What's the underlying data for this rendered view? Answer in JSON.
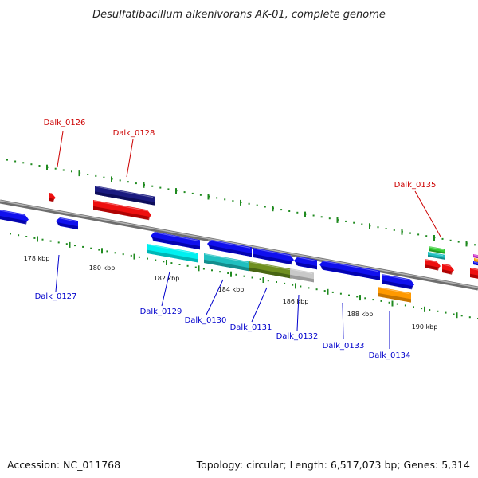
{
  "title": "Desulfatibacillum alkenivorans AK-01, complete genome",
  "footer": {
    "accession": "Accession: NC_011768",
    "topology": "Topology: circular; Length: 6,517,073 bp; Genes: 5,314"
  },
  "colors": {
    "backbone": "#7f7f7f",
    "tick": "#1f8a1f",
    "label_top": "#cc0000",
    "label_bottom": "#0000cc"
  },
  "ticks": [
    "178 kbp",
    "180 kbp",
    "182 kbp",
    "184 kbp",
    "186 kbp",
    "188 kbp",
    "190 kbp"
  ],
  "top_labels": [
    "Dalk_0126",
    "Dalk_0128",
    "Dalk_0135"
  ],
  "bottom_labels": [
    "Dalk_0127",
    "Dalk_0129",
    "Dalk_0130",
    "Dalk_0131",
    "Dalk_0132",
    "Dalk_0133",
    "Dalk_0134"
  ]
}
